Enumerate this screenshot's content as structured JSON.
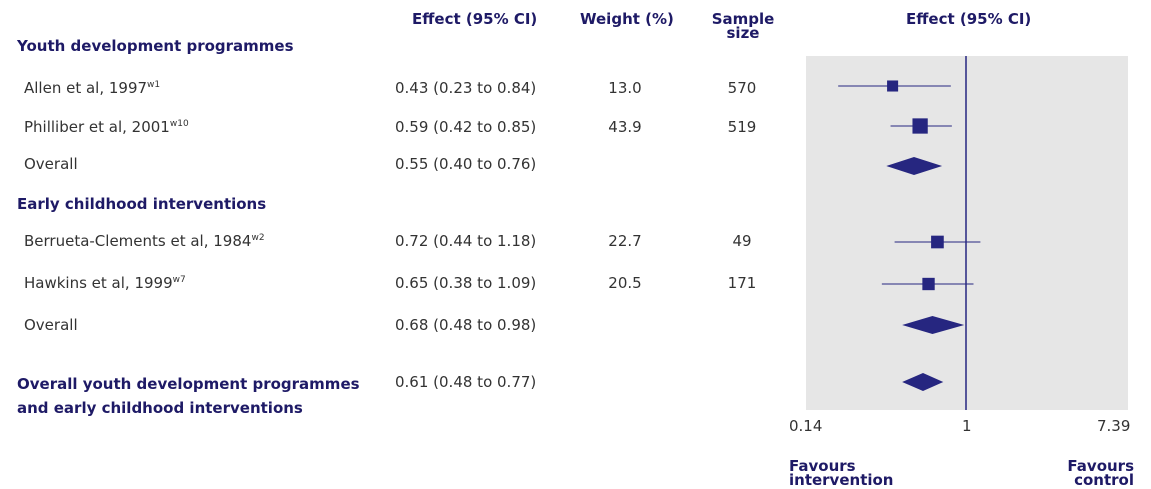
{
  "headers": {
    "effect": "Effect (95% CI)",
    "weight": "Weight (%)",
    "sample_line1": "Sample",
    "sample_line2": "size",
    "plot_effect": "Effect (95% CI)"
  },
  "sections": {
    "youth": "Youth development programmes",
    "early": "Early childhood interventions"
  },
  "rows": [
    {
      "label": "Allen et al, 1997",
      "sup": "w1",
      "effect": "0.43 (0.23 to 0.84)",
      "weight": "13.0",
      "n": "570"
    },
    {
      "label": "Philliber et al, 2001",
      "sup": "w10",
      "effect": "0.59 (0.42 to 0.85)",
      "weight": "43.9",
      "n": "519"
    },
    {
      "label": "Overall",
      "sup": "",
      "effect": "0.55 (0.40 to 0.76)",
      "weight": "",
      "n": ""
    },
    {
      "label": "Berrueta-Clements et al, 1984",
      "sup": "w2",
      "effect": "0.72 (0.44 to 1.18)",
      "weight": "22.7",
      "n": "49"
    },
    {
      "label": "Hawkins et al, 1999",
      "sup": "w7",
      "effect": "0.65 (0.38 to 1.09)",
      "weight": "20.5",
      "n": "171"
    },
    {
      "label": "Overall",
      "sup": "",
      "effect": "0.68 (0.48 to 0.98)",
      "weight": "",
      "n": ""
    }
  ],
  "overall": {
    "label_line1": "Overall youth development programmes",
    "label_line2": "and early childhood interventions",
    "effect": "0.61 (0.48 to 0.77)"
  },
  "axis": {
    "ticks": [
      "0.14",
      "1",
      "7.39"
    ],
    "favours_left_1": "Favours",
    "favours_left_2": "intervention",
    "favours_right_1": "Favours",
    "favours_right_2": "control"
  },
  "colors": {
    "marker": "#262680",
    "panel": "#e6e6e6",
    "heading": "#1e1a66"
  },
  "chart_data": {
    "type": "forest",
    "scale": "log",
    "xlim": [
      0.14,
      7.39
    ],
    "reference_line": 1,
    "studies": [
      {
        "name": "Allen et al, 1997",
        "estimate": 0.43,
        "lower": 0.23,
        "upper": 0.84,
        "weight": 13.0,
        "kind": "study"
      },
      {
        "name": "Philliber et al, 2001",
        "estimate": 0.59,
        "lower": 0.42,
        "upper": 0.85,
        "weight": 43.9,
        "kind": "study"
      },
      {
        "name": "Overall",
        "estimate": 0.55,
        "lower": 0.4,
        "upper": 0.76,
        "kind": "pooled"
      },
      {
        "name": "Berrueta-Clements et al, 1984",
        "estimate": 0.72,
        "lower": 0.44,
        "upper": 1.18,
        "weight": 22.7,
        "kind": "study"
      },
      {
        "name": "Hawkins et al, 1999",
        "estimate": 0.65,
        "lower": 0.38,
        "upper": 1.09,
        "weight": 20.5,
        "kind": "study"
      },
      {
        "name": "Overall",
        "estimate": 0.68,
        "lower": 0.48,
        "upper": 0.98,
        "kind": "pooled"
      },
      {
        "name": "Overall youth development programmes and early childhood interventions",
        "estimate": 0.61,
        "lower": 0.48,
        "upper": 0.77,
        "kind": "pooled"
      }
    ]
  }
}
